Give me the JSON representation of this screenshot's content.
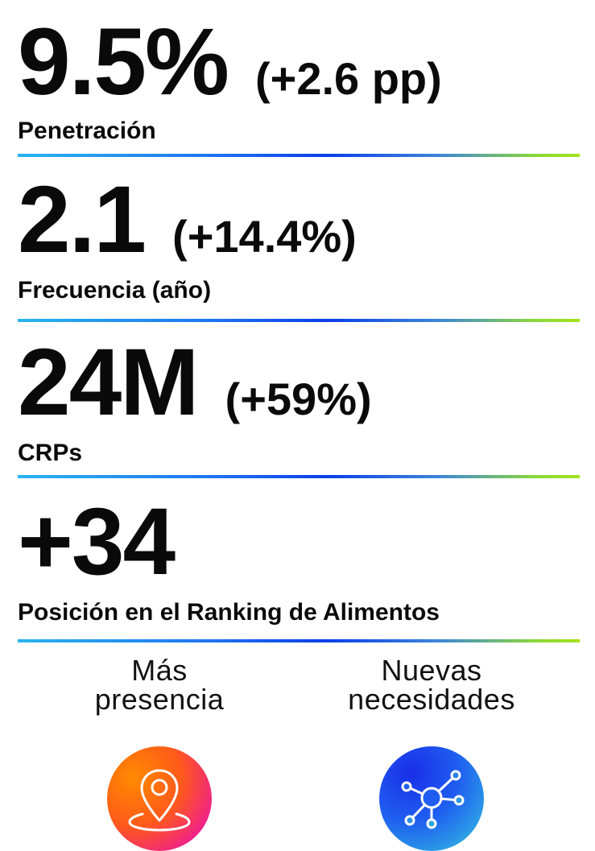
{
  "metrics": [
    {
      "value": "9.5%",
      "change": "(+2.6 pp)",
      "label": "Penetración"
    },
    {
      "value": "2.1",
      "change": "(+14.4%)",
      "label": "Frecuencia (año)"
    },
    {
      "value": "24M",
      "change": "(+59%)",
      "label": "CRPs"
    },
    {
      "value": "+34",
      "change": "",
      "label": "Posición en el Ranking de Alimentos"
    }
  ],
  "features": [
    {
      "line1": "Más",
      "line2": "presencia",
      "icon": "map-pin-icon"
    },
    {
      "line1": "Nuevas",
      "line2": "necesidades",
      "icon": "network-nodes-icon"
    }
  ],
  "colors": {
    "divider_start": "#29b4ef",
    "divider_mid": "#0a3ee8",
    "divider_end": "#a4e21c",
    "presence_circle": "#ff5a1a",
    "needs_circle": "#1f5ef0"
  }
}
